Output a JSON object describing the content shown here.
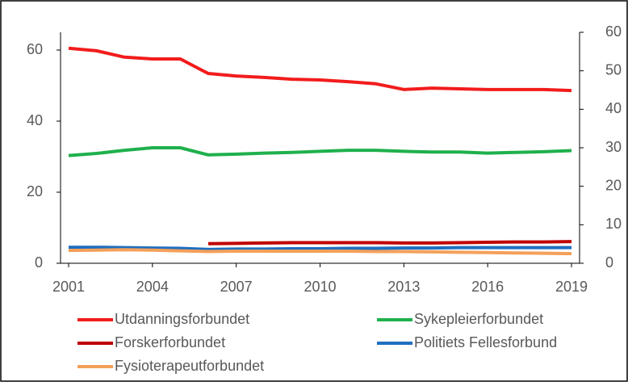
{
  "chart_data": {
    "type": "line",
    "x": [
      2001,
      2002,
      2003,
      2004,
      2005,
      2006,
      2007,
      2008,
      2009,
      2010,
      2011,
      2012,
      2013,
      2014,
      2015,
      2016,
      2017,
      2018,
      2019
    ],
    "xlim": [
      2001,
      2019
    ],
    "xticks": [
      2001,
      2004,
      2007,
      2010,
      2013,
      2016,
      2019
    ],
    "ylim": [
      0,
      65
    ],
    "yticks": [
      0,
      20,
      40,
      60
    ],
    "y2lim": [
      0,
      60
    ],
    "y2ticks": [
      0,
      10,
      20,
      30,
      40,
      50,
      60
    ],
    "grid": false,
    "legend": "bottom",
    "series": [
      {
        "name": "Utdanningsforbundet",
        "color": "#f21c1c",
        "values": [
          60.5,
          59.8,
          58,
          57.5,
          57.5,
          53.4,
          52.7,
          52.3,
          51.8,
          51.6,
          51.1,
          50.5,
          48.9,
          49.3,
          49.1,
          48.9,
          48.9,
          48.9,
          48.6
        ]
      },
      {
        "name": "Sykepleierforbundet",
        "color": "#1fb04c",
        "values": [
          30.3,
          30.9,
          31.8,
          32.5,
          32.5,
          30.5,
          30.7,
          31,
          31.2,
          31.5,
          31.8,
          31.8,
          31.5,
          31.3,
          31.3,
          31,
          31.2,
          31.4,
          31.7
        ]
      },
      {
        "name": "Forskerforbundet",
        "color": "#c00000",
        "values": [
          null,
          null,
          null,
          null,
          null,
          5.5,
          5.6,
          5.7,
          5.8,
          5.8,
          5.8,
          5.8,
          5.7,
          5.7,
          5.8,
          5.9,
          6.0,
          6.0,
          6.1
        ]
      },
      {
        "name": "Politiets Fellesforbund",
        "color": "#1f6fc0",
        "values": [
          4.5,
          4.5,
          4.4,
          4.3,
          4.2,
          3.9,
          4.0,
          4.0,
          4.1,
          4.1,
          4.2,
          4.2,
          4.3,
          4.3,
          4.4,
          4.4,
          4.4,
          4.4,
          4.4
        ]
      },
      {
        "name": "Fysioterapeutforbundet",
        "color": "#f4a05a",
        "values": [
          3.6,
          3.7,
          3.8,
          3.7,
          3.5,
          3.3,
          3.4,
          3.4,
          3.4,
          3.4,
          3.4,
          3.3,
          3.3,
          3.2,
          3.1,
          3.0,
          2.9,
          2.8,
          2.7
        ]
      }
    ]
  }
}
